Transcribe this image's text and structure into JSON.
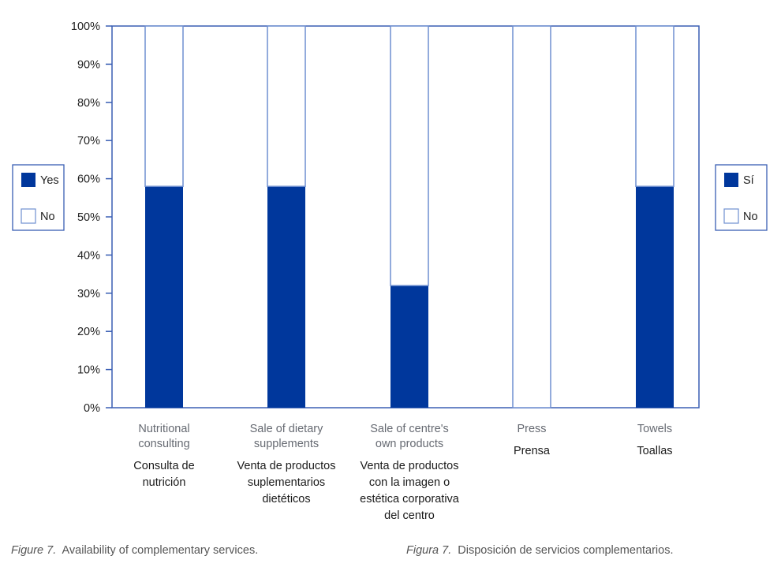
{
  "chart_data": {
    "type": "bar",
    "stacked": true,
    "percent": true,
    "categories_en": [
      [
        "Nutritional",
        "consulting"
      ],
      [
        "Sale of dietary",
        "supplements"
      ],
      [
        "Sale of centre's",
        "own products"
      ],
      [
        "Press"
      ],
      [
        "Towels"
      ]
    ],
    "categories_es": [
      [
        "Consulta de",
        "nutrición"
      ],
      [
        "Venta de productos",
        "suplementarios",
        "dietéticos"
      ],
      [
        "Venta de productos",
        "con la imagen o",
        "estética corporativa",
        "del centro"
      ],
      [
        "Prensa"
      ],
      [
        "Toallas"
      ]
    ],
    "series": [
      {
        "name": "Yes",
        "name_es": "Sí",
        "color": "#00379c",
        "values": [
          58,
          58,
          32,
          0,
          58
        ]
      },
      {
        "name": "No",
        "name_es": "No",
        "color": "#ffffff",
        "values": [
          42,
          42,
          68,
          100,
          42
        ]
      }
    ],
    "ylim": [
      0,
      100
    ],
    "yticks": [
      "0%",
      "10%",
      "20%",
      "30%",
      "40%",
      "50%",
      "60%",
      "70%",
      "80%",
      "90%",
      "100%"
    ],
    "legend_left": {
      "placement": "left",
      "entries": [
        "Yes",
        "No"
      ]
    },
    "legend_right": {
      "placement": "right",
      "entries": [
        "Sí",
        "No"
      ]
    },
    "axis_color": "#3a5fb4",
    "grid": false
  },
  "captions": {
    "en_label": "Figure 7.",
    "en_text": "Availability of complementary services.",
    "es_label": "Figura 7.",
    "es_text": "Disposición de servicios complementarios."
  }
}
